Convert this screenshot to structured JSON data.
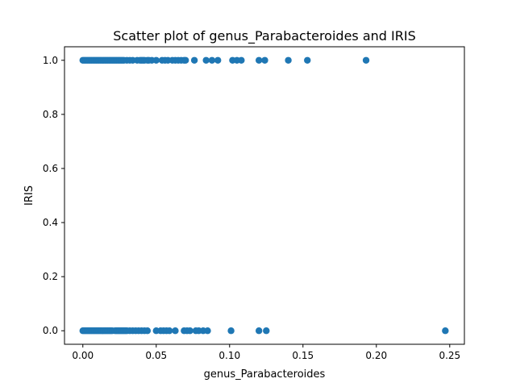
{
  "chart_data": {
    "type": "scatter",
    "title": "Scatter plot of genus_Parabacteroides and IRIS",
    "xlabel": "genus_Parabacteroides",
    "ylabel": "IRIS",
    "xlim": [
      -0.0125,
      0.26
    ],
    "ylim": [
      -0.05,
      1.05
    ],
    "xticks": [
      0.0,
      0.05,
      0.1,
      0.15,
      0.2,
      0.25
    ],
    "xtick_labels": [
      "0.00",
      "0.05",
      "0.10",
      "0.15",
      "0.20",
      "0.25"
    ],
    "yticks": [
      0.0,
      0.2,
      0.4,
      0.6,
      0.8,
      1.0
    ],
    "ytick_labels": [
      "0.0",
      "0.2",
      "0.4",
      "0.6",
      "0.8",
      "1.0"
    ],
    "grid": false,
    "marker_color": "#1f77b4",
    "series": [
      {
        "points": [
          {
            "x": 0.0,
            "y": 1
          },
          {
            "x": 0.001,
            "y": 1
          },
          {
            "x": 0.002,
            "y": 1
          },
          {
            "x": 0.003,
            "y": 1
          },
          {
            "x": 0.004,
            "y": 1
          },
          {
            "x": 0.005,
            "y": 1
          },
          {
            "x": 0.006,
            "y": 1
          },
          {
            "x": 0.007,
            "y": 1
          },
          {
            "x": 0.008,
            "y": 1
          },
          {
            "x": 0.009,
            "y": 1
          },
          {
            "x": 0.01,
            "y": 1
          },
          {
            "x": 0.011,
            "y": 1
          },
          {
            "x": 0.012,
            "y": 1
          },
          {
            "x": 0.013,
            "y": 1
          },
          {
            "x": 0.014,
            "y": 1
          },
          {
            "x": 0.015,
            "y": 1
          },
          {
            "x": 0.016,
            "y": 1
          },
          {
            "x": 0.017,
            "y": 1
          },
          {
            "x": 0.018,
            "y": 1
          },
          {
            "x": 0.019,
            "y": 1
          },
          {
            "x": 0.02,
            "y": 1
          },
          {
            "x": 0.021,
            "y": 1
          },
          {
            "x": 0.022,
            "y": 1
          },
          {
            "x": 0.023,
            "y": 1
          },
          {
            "x": 0.024,
            "y": 1
          },
          {
            "x": 0.025,
            "y": 1
          },
          {
            "x": 0.026,
            "y": 1
          },
          {
            "x": 0.027,
            "y": 1
          },
          {
            "x": 0.028,
            "y": 1
          },
          {
            "x": 0.03,
            "y": 1
          },
          {
            "x": 0.032,
            "y": 1
          },
          {
            "x": 0.034,
            "y": 1
          },
          {
            "x": 0.037,
            "y": 1
          },
          {
            "x": 0.039,
            "y": 1
          },
          {
            "x": 0.04,
            "y": 1
          },
          {
            "x": 0.041,
            "y": 1
          },
          {
            "x": 0.042,
            "y": 1
          },
          {
            "x": 0.044,
            "y": 1
          },
          {
            "x": 0.045,
            "y": 1
          },
          {
            "x": 0.047,
            "y": 1
          },
          {
            "x": 0.05,
            "y": 1
          },
          {
            "x": 0.054,
            "y": 1
          },
          {
            "x": 0.056,
            "y": 1
          },
          {
            "x": 0.058,
            "y": 1
          },
          {
            "x": 0.061,
            "y": 1
          },
          {
            "x": 0.063,
            "y": 1
          },
          {
            "x": 0.065,
            "y": 1
          },
          {
            "x": 0.067,
            "y": 1
          },
          {
            "x": 0.069,
            "y": 1
          },
          {
            "x": 0.07,
            "y": 1
          },
          {
            "x": 0.076,
            "y": 1
          },
          {
            "x": 0.084,
            "y": 1
          },
          {
            "x": 0.088,
            "y": 1
          },
          {
            "x": 0.092,
            "y": 1
          },
          {
            "x": 0.102,
            "y": 1
          },
          {
            "x": 0.105,
            "y": 1
          },
          {
            "x": 0.108,
            "y": 1
          },
          {
            "x": 0.12,
            "y": 1
          },
          {
            "x": 0.124,
            "y": 1
          },
          {
            "x": 0.14,
            "y": 1
          },
          {
            "x": 0.153,
            "y": 1
          },
          {
            "x": 0.193,
            "y": 1
          },
          {
            "x": 0.0,
            "y": 0
          },
          {
            "x": 0.001,
            "y": 0
          },
          {
            "x": 0.002,
            "y": 0
          },
          {
            "x": 0.003,
            "y": 0
          },
          {
            "x": 0.004,
            "y": 0
          },
          {
            "x": 0.005,
            "y": 0
          },
          {
            "x": 0.006,
            "y": 0
          },
          {
            "x": 0.007,
            "y": 0
          },
          {
            "x": 0.008,
            "y": 0
          },
          {
            "x": 0.009,
            "y": 0
          },
          {
            "x": 0.01,
            "y": 0
          },
          {
            "x": 0.011,
            "y": 0
          },
          {
            "x": 0.012,
            "y": 0
          },
          {
            "x": 0.013,
            "y": 0
          },
          {
            "x": 0.014,
            "y": 0
          },
          {
            "x": 0.015,
            "y": 0
          },
          {
            "x": 0.016,
            "y": 0
          },
          {
            "x": 0.017,
            "y": 0
          },
          {
            "x": 0.018,
            "y": 0
          },
          {
            "x": 0.019,
            "y": 0
          },
          {
            "x": 0.02,
            "y": 0
          },
          {
            "x": 0.022,
            "y": 0
          },
          {
            "x": 0.023,
            "y": 0
          },
          {
            "x": 0.024,
            "y": 0
          },
          {
            "x": 0.025,
            "y": 0
          },
          {
            "x": 0.026,
            "y": 0
          },
          {
            "x": 0.027,
            "y": 0
          },
          {
            "x": 0.028,
            "y": 0
          },
          {
            "x": 0.029,
            "y": 0
          },
          {
            "x": 0.03,
            "y": 0
          },
          {
            "x": 0.032,
            "y": 0
          },
          {
            "x": 0.034,
            "y": 0
          },
          {
            "x": 0.036,
            "y": 0
          },
          {
            "x": 0.038,
            "y": 0
          },
          {
            "x": 0.04,
            "y": 0
          },
          {
            "x": 0.042,
            "y": 0
          },
          {
            "x": 0.044,
            "y": 0
          },
          {
            "x": 0.05,
            "y": 0
          },
          {
            "x": 0.053,
            "y": 0
          },
          {
            "x": 0.055,
            "y": 0
          },
          {
            "x": 0.057,
            "y": 0
          },
          {
            "x": 0.059,
            "y": 0
          },
          {
            "x": 0.063,
            "y": 0
          },
          {
            "x": 0.069,
            "y": 0
          },
          {
            "x": 0.071,
            "y": 0
          },
          {
            "x": 0.073,
            "y": 0
          },
          {
            "x": 0.077,
            "y": 0
          },
          {
            "x": 0.079,
            "y": 0
          },
          {
            "x": 0.082,
            "y": 0
          },
          {
            "x": 0.085,
            "y": 0
          },
          {
            "x": 0.101,
            "y": 0
          },
          {
            "x": 0.12,
            "y": 0
          },
          {
            "x": 0.125,
            "y": 0
          },
          {
            "x": 0.247,
            "y": 0
          }
        ]
      }
    ]
  }
}
